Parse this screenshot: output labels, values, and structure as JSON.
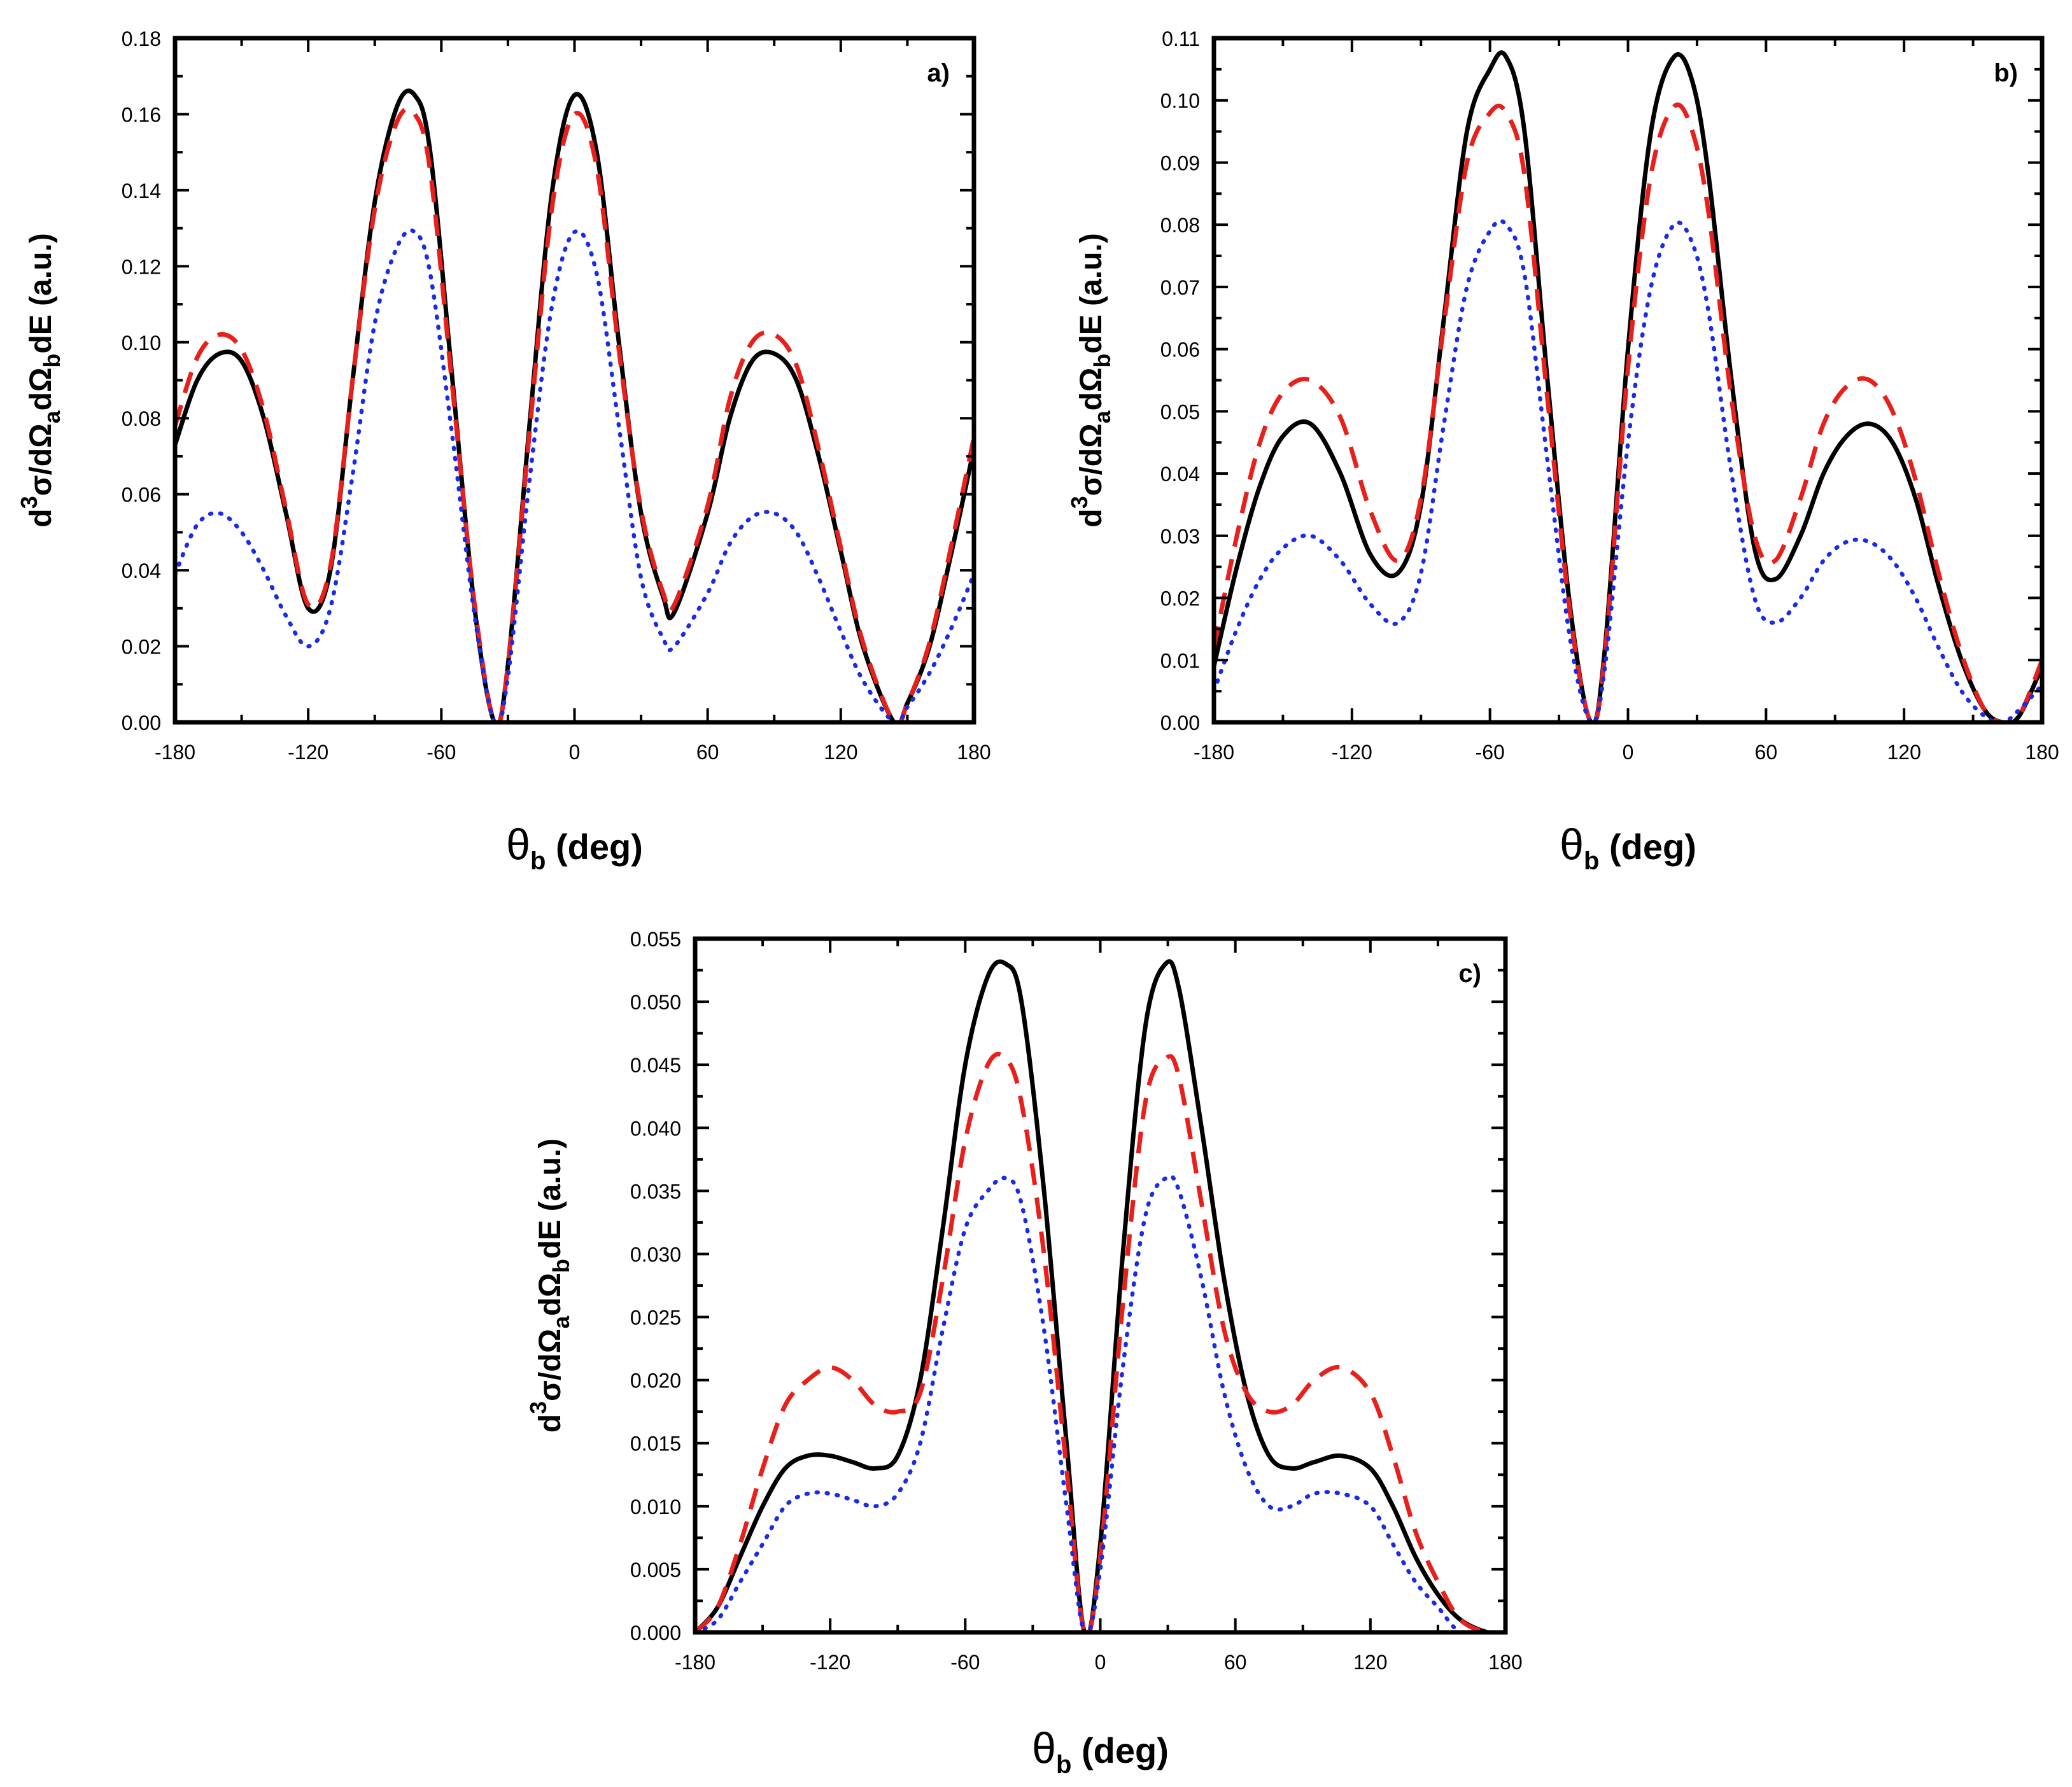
{
  "chart_data": [
    {
      "type": "line",
      "panel_label": "a)",
      "xlabel": {
        "main": "θ",
        "sub": "b",
        "tail": " (deg)"
      },
      "ylabel": {
        "p1": "d",
        "sup": "3",
        "p2": "σ/dΩ",
        "sub1": "a",
        "p3": "dΩ",
        "sub2": "b",
        "p4": "dE (a.u.)"
      },
      "xlim": [
        -180,
        180
      ],
      "ylim": [
        0,
        0.18
      ],
      "xticks": [
        -180,
        -120,
        -60,
        0,
        60,
        120,
        180
      ],
      "xtick_labels": [
        "-180",
        "-120",
        "-60",
        "0",
        "60",
        "120",
        "180"
      ],
      "yticks": [
        0,
        0.02,
        0.04,
        0.06,
        0.08,
        0.1,
        0.12,
        0.14,
        0.16,
        0.18
      ],
      "ytick_labels": [
        "0.00",
        "0.02",
        "0.04",
        "0.06",
        "0.08",
        "0.10",
        "0.12",
        "0.14",
        "0.16",
        "0.18"
      ],
      "series": [
        {
          "name": "solid",
          "style": "solid",
          "color": "#000000",
          "x": [
            -180,
            -170,
            -160,
            -150,
            -140,
            -130,
            -120,
            -110,
            -100,
            -90,
            -80,
            -72,
            -65,
            -55,
            -45,
            -36,
            -30,
            -20,
            -10,
            0,
            10,
            20,
            30,
            40,
            45,
            60,
            70,
            80,
            90,
            100,
            110,
            120,
            130,
            144,
            150,
            160,
            170,
            180
          ],
          "values": [
            0.073,
            0.09,
            0.097,
            0.095,
            0.08,
            0.055,
            0.03,
            0.04,
            0.09,
            0.137,
            0.162,
            0.165,
            0.15,
            0.09,
            0.03,
            0.0,
            0.015,
            0.08,
            0.14,
            0.165,
            0.15,
            0.1,
            0.055,
            0.033,
            0.029,
            0.055,
            0.08,
            0.095,
            0.097,
            0.09,
            0.07,
            0.045,
            0.02,
            0.0,
            0.005,
            0.02,
            0.045,
            0.072
          ]
        },
        {
          "name": "dashed",
          "style": "dashed",
          "color": "#e8201c",
          "x": [
            -180,
            -170,
            -160,
            -150,
            -140,
            -130,
            -120,
            -110,
            -100,
            -90,
            -80,
            -72,
            -65,
            -55,
            -45,
            -36,
            -30,
            -20,
            -10,
            0,
            10,
            20,
            30,
            40,
            45,
            60,
            70,
            80,
            90,
            100,
            110,
            120,
            130,
            144,
            150,
            160,
            170,
            180
          ],
          "values": [
            0.078,
            0.096,
            0.102,
            0.098,
            0.082,
            0.056,
            0.031,
            0.041,
            0.09,
            0.135,
            0.158,
            0.16,
            0.145,
            0.088,
            0.031,
            0.0,
            0.015,
            0.078,
            0.136,
            0.16,
            0.146,
            0.098,
            0.056,
            0.034,
            0.031,
            0.057,
            0.085,
            0.1,
            0.102,
            0.094,
            0.072,
            0.046,
            0.021,
            0.0,
            0.005,
            0.021,
            0.047,
            0.075
          ]
        },
        {
          "name": "dotted",
          "style": "dotted",
          "color": "#1a2be8",
          "x": [
            -180,
            -170,
            -160,
            -150,
            -140,
            -130,
            -120,
            -110,
            -100,
            -90,
            -80,
            -72,
            -65,
            -55,
            -45,
            -36,
            -30,
            -20,
            -10,
            0,
            10,
            20,
            30,
            40,
            45,
            60,
            70,
            80,
            90,
            100,
            110,
            120,
            130,
            144,
            150,
            160,
            170,
            180
          ],
          "values": [
            0.039,
            0.052,
            0.055,
            0.05,
            0.04,
            0.028,
            0.02,
            0.03,
            0.065,
            0.105,
            0.125,
            0.129,
            0.118,
            0.075,
            0.028,
            0.0,
            0.012,
            0.065,
            0.11,
            0.129,
            0.118,
            0.078,
            0.038,
            0.022,
            0.02,
            0.034,
            0.047,
            0.054,
            0.055,
            0.05,
            0.038,
            0.024,
            0.011,
            0.0,
            0.004,
            0.013,
            0.025,
            0.039
          ]
        }
      ]
    },
    {
      "type": "line",
      "panel_label": "b)",
      "xlabel": {
        "main": "θ",
        "sub": "b",
        "tail": " (deg)"
      },
      "ylabel": {
        "p1": "d",
        "sup": "3",
        "p2": "σ/dΩ",
        "sub1": "a",
        "p3": "dΩ",
        "sub2": "b",
        "p4": "dE (a.u.)"
      },
      "xlim": [
        -180,
        180
      ],
      "ylim": [
        0,
        0.11
      ],
      "xticks": [
        -180,
        -120,
        -60,
        0,
        60,
        120,
        180
      ],
      "xtick_labels": [
        "-180",
        "-120",
        "-60",
        "0",
        "60",
        "120",
        "180"
      ],
      "yticks": [
        0,
        0.01,
        0.02,
        0.03,
        0.04,
        0.05,
        0.06,
        0.07,
        0.08,
        0.09,
        0.1,
        0.11
      ],
      "ytick_labels": [
        "0.00",
        "0.01",
        "0.02",
        "0.03",
        "0.04",
        "0.05",
        "0.06",
        "0.07",
        "0.08",
        "0.09",
        "0.10",
        "0.11"
      ],
      "series": [
        {
          "name": "solid",
          "style": "solid",
          "color": "#000000",
          "x": [
            -180,
            -170,
            -160,
            -150,
            -138,
            -125,
            -112,
            -100,
            -90,
            -80,
            -70,
            -60,
            -53,
            -45,
            -35,
            -25,
            -16,
            -10,
            0,
            10,
            20,
            28,
            35,
            45,
            55,
            64,
            75,
            85,
            95,
            105,
            115,
            125,
            135,
            145,
            155,
            163,
            170,
            180
          ],
          "values": [
            0.009,
            0.025,
            0.038,
            0.046,
            0.048,
            0.04,
            0.027,
            0.024,
            0.035,
            0.065,
            0.095,
            0.105,
            0.107,
            0.095,
            0.055,
            0.018,
            0.0,
            0.012,
            0.06,
            0.095,
            0.107,
            0.103,
            0.088,
            0.055,
            0.028,
            0.023,
            0.03,
            0.04,
            0.046,
            0.048,
            0.045,
            0.036,
            0.022,
            0.01,
            0.002,
            0.0,
            0.001,
            0.009
          ]
        },
        {
          "name": "dashed",
          "style": "dashed",
          "color": "#e8201c",
          "x": [
            -180,
            -170,
            -160,
            -150,
            -138,
            -125,
            -112,
            -100,
            -90,
            -80,
            -70,
            -60,
            -53,
            -45,
            -35,
            -25,
            -16,
            -10,
            0,
            10,
            20,
            28,
            35,
            45,
            55,
            64,
            75,
            85,
            95,
            105,
            115,
            125,
            135,
            145,
            155,
            163,
            170,
            180
          ],
          "values": [
            0.012,
            0.03,
            0.045,
            0.053,
            0.055,
            0.049,
            0.034,
            0.026,
            0.036,
            0.064,
            0.09,
            0.098,
            0.098,
            0.088,
            0.052,
            0.017,
            0.0,
            0.011,
            0.057,
            0.088,
            0.099,
            0.095,
            0.082,
            0.052,
            0.03,
            0.026,
            0.036,
            0.048,
            0.054,
            0.055,
            0.05,
            0.039,
            0.024,
            0.011,
            0.002,
            0.0,
            0.001,
            0.01
          ]
        },
        {
          "name": "dotted",
          "style": "dotted",
          "color": "#1a2be8",
          "x": [
            -180,
            -170,
            -160,
            -150,
            -138,
            -125,
            -112,
            -100,
            -90,
            -80,
            -70,
            -60,
            -53,
            -45,
            -35,
            -25,
            -16,
            -10,
            0,
            10,
            20,
            28,
            35,
            45,
            55,
            64,
            75,
            85,
            95,
            105,
            115,
            125,
            135,
            145,
            155,
            163,
            170,
            180
          ],
          "values": [
            0.005,
            0.015,
            0.023,
            0.028,
            0.03,
            0.026,
            0.019,
            0.016,
            0.024,
            0.048,
            0.07,
            0.079,
            0.08,
            0.072,
            0.042,
            0.013,
            0.0,
            0.009,
            0.045,
            0.07,
            0.08,
            0.077,
            0.066,
            0.04,
            0.02,
            0.016,
            0.02,
            0.026,
            0.029,
            0.029,
            0.026,
            0.02,
            0.012,
            0.005,
            0.001,
            0.0,
            0.002,
            0.006
          ]
        }
      ]
    },
    {
      "type": "line",
      "panel_label": "c)",
      "xlabel": {
        "main": "θ",
        "sub": "b",
        "tail": " (deg)"
      },
      "ylabel": {
        "p1": "d",
        "sup": "3",
        "p2": "σ/dΩ",
        "sub1": "a",
        "p3": "dΩ",
        "sub2": "b",
        "p4": "dE (a.u.)"
      },
      "xlim": [
        -180,
        180
      ],
      "ylim": [
        0,
        0.055
      ],
      "xticks": [
        -180,
        -120,
        -60,
        0,
        60,
        120,
        180
      ],
      "xtick_labels": [
        "-180",
        "-120",
        "-60",
        "0",
        "60",
        "120",
        "180"
      ],
      "yticks": [
        0,
        0.005,
        0.01,
        0.015,
        0.02,
        0.025,
        0.03,
        0.035,
        0.04,
        0.045,
        0.05,
        0.055
      ],
      "ytick_labels": [
        "0.000",
        "0.005",
        "0.010",
        "0.015",
        "0.020",
        "0.025",
        "0.030",
        "0.035",
        "0.040",
        "0.045",
        "0.050",
        "0.055"
      ],
      "series": [
        {
          "name": "solid",
          "style": "solid",
          "color": "#000000",
          "x": [
            -180,
            -170,
            -160,
            -150,
            -140,
            -130,
            -120,
            -110,
            -100,
            -90,
            -80,
            -70,
            -60,
            -50,
            -42,
            -35,
            -25,
            -15,
            -7,
            0,
            10,
            20,
            29,
            35,
            45,
            55,
            65,
            75,
            85,
            95,
            107,
            120,
            130,
            140,
            150,
            160,
            172,
            180
          ],
          "values": [
            0.0,
            0.002,
            0.006,
            0.01,
            0.013,
            0.014,
            0.014,
            0.0135,
            0.013,
            0.014,
            0.02,
            0.032,
            0.045,
            0.052,
            0.053,
            0.05,
            0.035,
            0.015,
            0.0,
            0.007,
            0.03,
            0.048,
            0.053,
            0.051,
            0.04,
            0.028,
            0.019,
            0.014,
            0.013,
            0.0135,
            0.014,
            0.013,
            0.01,
            0.006,
            0.003,
            0.001,
            0.0,
            0.0
          ]
        },
        {
          "name": "dashed",
          "style": "dashed",
          "color": "#e8201c",
          "x": [
            -180,
            -170,
            -160,
            -150,
            -140,
            -130,
            -120,
            -110,
            -100,
            -90,
            -80,
            -70,
            -60,
            -50,
            -42,
            -35,
            -25,
            -15,
            -7,
            0,
            10,
            20,
            29,
            35,
            45,
            55,
            65,
            75,
            85,
            95,
            107,
            120,
            130,
            140,
            150,
            160,
            172,
            180
          ],
          "values": [
            0.0,
            0.002,
            0.007,
            0.013,
            0.018,
            0.02,
            0.021,
            0.02,
            0.018,
            0.0175,
            0.019,
            0.028,
            0.039,
            0.045,
            0.0455,
            0.042,
            0.03,
            0.013,
            0.0,
            0.006,
            0.026,
            0.042,
            0.0455,
            0.044,
            0.034,
            0.024,
            0.019,
            0.0175,
            0.018,
            0.02,
            0.021,
            0.019,
            0.014,
            0.008,
            0.004,
            0.001,
            0.0,
            0.0
          ]
        },
        {
          "name": "dotted",
          "style": "dotted",
          "color": "#1a2be8",
          "x": [
            -180,
            -170,
            -160,
            -150,
            -140,
            -130,
            -120,
            -110,
            -100,
            -90,
            -80,
            -70,
            -60,
            -50,
            -42,
            -35,
            -25,
            -15,
            -7,
            0,
            10,
            20,
            29,
            35,
            45,
            55,
            65,
            75,
            85,
            95,
            107,
            120,
            130,
            140,
            150,
            160,
            172,
            180
          ],
          "values": [
            0.0,
            0.001,
            0.004,
            0.007,
            0.01,
            0.011,
            0.011,
            0.0105,
            0.01,
            0.011,
            0.015,
            0.024,
            0.032,
            0.035,
            0.036,
            0.034,
            0.024,
            0.01,
            0.0,
            0.005,
            0.021,
            0.033,
            0.036,
            0.035,
            0.028,
            0.019,
            0.013,
            0.01,
            0.01,
            0.011,
            0.011,
            0.01,
            0.007,
            0.004,
            0.002,
            0.0,
            0.0,
            0.0
          ]
        }
      ]
    }
  ]
}
